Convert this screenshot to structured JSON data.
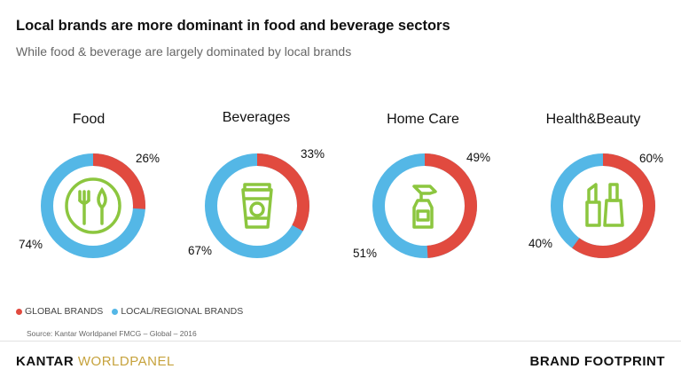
{
  "header": {
    "title": "Local brands are more dominant in food and beverage sectors",
    "subtitle": "While food & beverage are largely dominated by local brands"
  },
  "colors": {
    "global": "#e14a3f",
    "local": "#54b7e6",
    "icon": "#8cc63f"
  },
  "chart_data": [
    {
      "type": "pie",
      "title": "Food",
      "labels": [
        "GLOBAL BRANDS",
        "LOCAL/REGIONAL BRANDS"
      ],
      "values": [
        26,
        74
      ],
      "value_labels": [
        "26%",
        "74%"
      ],
      "icon": "plate-fork-leaf-icon"
    },
    {
      "type": "pie",
      "title": "Beverages",
      "labels": [
        "GLOBAL BRANDS",
        "LOCAL/REGIONAL BRANDS"
      ],
      "values": [
        33,
        67
      ],
      "value_labels": [
        "33%",
        "67%"
      ],
      "icon": "coffee-cup-icon"
    },
    {
      "type": "pie",
      "title": "Home Care",
      "labels": [
        "GLOBAL BRANDS",
        "LOCAL/REGIONAL BRANDS"
      ],
      "values": [
        49,
        51
      ],
      "value_labels": [
        "49%",
        "51%"
      ],
      "icon": "spray-bottle-icon"
    },
    {
      "type": "pie",
      "title": "Health&Beauty",
      "labels": [
        "GLOBAL BRANDS",
        "LOCAL/REGIONAL BRANDS"
      ],
      "values": [
        60,
        40
      ],
      "value_labels": [
        "60%",
        "40%"
      ],
      "icon": "lipstick-nail-polish-icon"
    }
  ],
  "legend": {
    "global_label": "GLOBAL BRANDS",
    "local_label": "LOCAL/REGIONAL BRANDS"
  },
  "source": "Source: Kantar Worldpanel FMCG – Global – 2016",
  "footer": {
    "left_brand_a": "KANTAR",
    "left_brand_b": "WORLDPANEL",
    "right_brand": "BRAND FOOTPRINT"
  }
}
